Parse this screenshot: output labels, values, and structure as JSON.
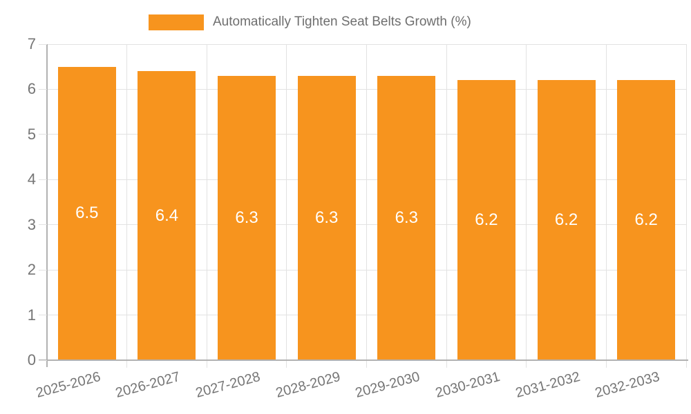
{
  "legend": {
    "label": "Automatically Tighten Seat Belts Growth (%)"
  },
  "colors": {
    "bar": "#F7941E",
    "grid": "#E2E2E2",
    "axis_line": "#B1B1B1",
    "axis_text": "#757575",
    "legend_text": "#6E6E6E",
    "value_text": "#FFFFFF",
    "background": "#FFFFFF"
  },
  "chart_data": {
    "type": "bar",
    "title": "Automatically Tighten Seat Belts Growth (%)",
    "categories": [
      "2025-2026",
      "2026-2027",
      "2027-2028",
      "2028-2029",
      "2029-2030",
      "2030-2031",
      "2031-2032",
      "2032-2033"
    ],
    "values": [
      6.5,
      6.4,
      6.3,
      6.3,
      6.3,
      6.2,
      6.2,
      6.2
    ],
    "bar_labels": [
      "6.5",
      "6.4",
      "6.3",
      "6.3",
      "6.3",
      "6.2",
      "6.2",
      "6.2"
    ],
    "xlabel": "",
    "ylabel": "",
    "ylim": [
      0,
      7
    ],
    "yticks": [
      0,
      1,
      2,
      3,
      4,
      5,
      6,
      7
    ],
    "grid": true,
    "legend_position": "top"
  }
}
